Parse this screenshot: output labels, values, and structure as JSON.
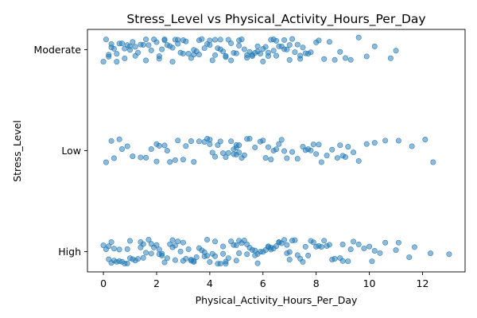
{
  "chart_data": {
    "type": "scatter",
    "title": "Stress_Level vs Physical_Activity_Hours_Per_Day",
    "xlabel": "Physical_Activity_Hours_Per_Day",
    "ylabel": "Stress_Level",
    "xlim": [
      -0.6,
      13.6
    ],
    "x_ticks": [
      0,
      2,
      4,
      6,
      8,
      10,
      12
    ],
    "categories": [
      "High",
      "Low",
      "Moderate"
    ],
    "grid": false,
    "legend": "none",
    "marker_color": "#1f77b4",
    "marker_alpha": 0.5,
    "jitter": 0.12,
    "series": [
      {
        "category": "Moderate",
        "x": [
          0.0,
          0.1,
          0.2,
          0.2,
          0.3,
          0.4,
          0.5,
          0.6,
          0.7,
          0.8,
          0.9,
          1.0,
          1.1,
          1.2,
          1.3,
          1.4,
          1.5,
          1.6,
          1.7,
          1.8,
          1.9,
          2.0,
          2.1,
          2.2,
          2.3,
          2.4,
          2.5,
          2.6,
          2.7,
          2.8,
          2.9,
          3.0,
          3.1,
          3.2,
          3.3,
          3.4,
          3.5,
          3.6,
          3.7,
          3.8,
          3.9,
          4.0,
          4.1,
          4.2,
          4.3,
          4.4,
          4.5,
          4.6,
          4.7,
          4.8,
          4.9,
          5.0,
          5.1,
          5.2,
          5.3,
          5.4,
          5.5,
          5.6,
          5.7,
          5.8,
          5.9,
          6.0,
          6.1,
          6.2,
          6.3,
          6.4,
          6.5,
          6.6,
          6.7,
          6.8,
          6.9,
          7.0,
          7.1,
          7.2,
          7.3,
          7.4,
          7.5,
          7.6,
          7.7,
          7.8,
          8.0,
          8.1,
          8.3,
          8.5,
          8.7,
          8.9,
          9.1,
          9.3,
          9.6,
          9.9,
          10.2,
          10.8,
          11.0,
          0.3,
          0.8,
          1.6,
          2.3,
          3.0,
          3.6,
          4.2,
          4.8,
          5.4,
          6.0,
          6.5,
          7.0,
          0.5,
          1.2,
          2.1,
          2.8,
          3.4,
          4.0,
          4.6,
          5.1,
          5.6,
          6.2,
          6.8,
          7.4,
          1.0,
          2.6,
          4.4,
          5.8,
          6.4
        ]
      },
      {
        "category": "Low",
        "x": [
          0.1,
          0.3,
          0.4,
          0.6,
          0.7,
          0.9,
          1.1,
          1.4,
          1.6,
          1.8,
          2.0,
          2.0,
          2.1,
          2.3,
          2.4,
          2.5,
          2.7,
          2.8,
          3.0,
          3.1,
          3.3,
          3.4,
          3.6,
          3.8,
          3.9,
          4.0,
          4.0,
          4.1,
          4.2,
          4.3,
          4.4,
          4.5,
          4.6,
          4.7,
          4.8,
          4.9,
          4.9,
          5.0,
          5.0,
          5.0,
          5.1,
          5.1,
          5.2,
          5.3,
          5.4,
          5.5,
          5.7,
          5.9,
          6.0,
          6.1,
          6.2,
          6.3,
          6.4,
          6.5,
          6.6,
          6.7,
          6.8,
          6.9,
          7.1,
          7.3,
          7.5,
          7.6,
          7.7,
          7.8,
          7.9,
          8.0,
          8.1,
          8.2,
          8.4,
          8.6,
          8.8,
          8.9,
          9.0,
          9.1,
          9.2,
          9.4,
          9.6,
          9.9,
          10.2,
          10.6,
          11.1,
          11.6,
          12.1,
          12.4
        ]
      },
      {
        "category": "High",
        "x": [
          0.0,
          0.1,
          0.2,
          0.3,
          0.3,
          0.4,
          0.5,
          0.6,
          0.7,
          0.8,
          0.9,
          1.0,
          1.1,
          1.2,
          1.3,
          1.4,
          1.5,
          1.6,
          1.7,
          1.8,
          1.9,
          2.0,
          2.1,
          2.2,
          2.3,
          2.4,
          2.5,
          2.6,
          2.7,
          2.8,
          2.9,
          3.0,
          3.1,
          3.2,
          3.3,
          3.4,
          3.5,
          3.6,
          3.7,
          3.8,
          3.9,
          4.0,
          4.1,
          4.2,
          4.3,
          4.4,
          4.5,
          4.6,
          4.7,
          4.8,
          4.9,
          5.0,
          5.1,
          5.2,
          5.3,
          5.4,
          5.5,
          5.6,
          5.7,
          5.8,
          5.9,
          6.0,
          6.1,
          6.2,
          6.3,
          6.4,
          6.5,
          6.6,
          6.7,
          6.8,
          6.9,
          7.0,
          7.1,
          7.2,
          7.3,
          7.5,
          7.7,
          7.9,
          8.0,
          8.1,
          8.3,
          8.5,
          8.7,
          8.9,
          9.0,
          9.2,
          9.4,
          9.6,
          9.8,
          10.0,
          10.2,
          10.4,
          10.6,
          11.0,
          11.1,
          11.5,
          11.7,
          12.3,
          13.0,
          0.2,
          0.6,
          1.0,
          1.4,
          1.8,
          2.2,
          2.6,
          3.0,
          3.4,
          3.8,
          4.2,
          4.6,
          5.0,
          5.4,
          5.8,
          6.2,
          6.6,
          7.0,
          7.4,
          7.8,
          8.2,
          8.6,
          9.0,
          0.4,
          0.9,
          1.5,
          2.1,
          2.7,
          3.3,
          3.9,
          4.5,
          5.1,
          5.7,
          6.3,
          6.9,
          7.6,
          8.4,
          9.3,
          10.1
        ]
      }
    ]
  }
}
